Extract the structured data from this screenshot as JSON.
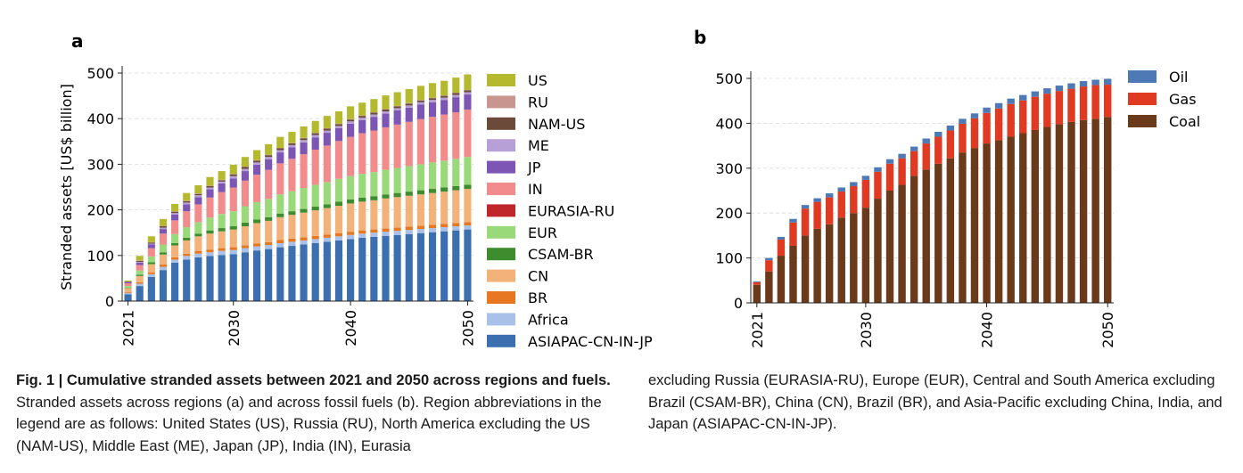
{
  "panels": [
    {
      "label": "a",
      "chart_data": {
        "type": "stacked_bar",
        "ylabel": "Stranded assets [US$ billion]",
        "xlabel": "",
        "ylim": [
          0,
          500
        ],
        "yticks": [
          0,
          100,
          200,
          300,
          400,
          500
        ],
        "xticks": [
          2021,
          2030,
          2040,
          2050
        ],
        "x": [
          2021,
          2022,
          2023,
          2024,
          2025,
          2026,
          2027,
          2028,
          2029,
          2030,
          2031,
          2032,
          2033,
          2034,
          2035,
          2036,
          2037,
          2038,
          2039,
          2040,
          2041,
          2042,
          2043,
          2044,
          2045,
          2046,
          2047,
          2048,
          2049,
          2050
        ],
        "legend_position": "right",
        "grid": "horizontal dashed",
        "series": [
          {
            "name": "ASIAPAC-CN-IN-JP",
            "color": "#3b6fb0",
            "values": [
              15,
              33,
              53,
              68,
              84,
              91,
              96,
              99,
              101,
              103,
              107,
              111,
              114,
              118,
              121,
              124,
              127,
              130,
              133,
              136,
              139,
              141,
              143,
              145,
              147,
              149,
              151,
              153,
              155,
              157
            ]
          },
          {
            "name": "Africa",
            "color": "#a9c1e8",
            "values": [
              3,
              5,
              6,
              7,
              7,
              8,
              8,
              8,
              9,
              9,
              9,
              9,
              9,
              9,
              9,
              9,
              9,
              9,
              9,
              9,
              9,
              9,
              9,
              9,
              9,
              9,
              9,
              9,
              9,
              9
            ]
          },
          {
            "name": "BR",
            "color": "#e87722",
            "values": [
              2,
              3,
              4,
              5,
              5,
              5,
              6,
              6,
              6,
              6,
              6,
              6,
              6,
              7,
              7,
              7,
              7,
              7,
              7,
              7,
              7,
              7,
              7,
              7,
              7,
              7,
              7,
              7,
              7,
              7
            ]
          },
          {
            "name": "CN",
            "color": "#f3b27a",
            "values": [
              8,
              14,
              18,
              22,
              26,
              29,
              32,
              35,
              37,
              39,
              42,
              45,
              47,
              50,
              52,
              54,
              56,
              58,
              60,
              62,
              63,
              64,
              66,
              67,
              68,
              69,
              70,
              71,
              72,
              73
            ]
          },
          {
            "name": "CSAM-BR",
            "color": "#3d8c2e",
            "values": [
              1,
              3,
              4,
              5,
              5,
              6,
              6,
              7,
              7,
              7,
              8,
              8,
              8,
              8,
              8,
              8,
              8,
              8,
              9,
              9,
              9,
              9,
              9,
              9,
              9,
              9,
              9,
              9,
              9,
              9
            ]
          },
          {
            "name": "EUR",
            "color": "#9ad97a",
            "values": [
              4,
              9,
              13,
              17,
              20,
              23,
              25,
              28,
              31,
              33,
              36,
              38,
              40,
              42,
              44,
              46,
              48,
              49,
              50,
              51,
              52,
              53,
              54,
              55,
              56,
              57,
              58,
              59,
              60,
              61
            ]
          },
          {
            "name": "EURASIA-RU",
            "color": "#c0272d",
            "values": [
              0,
              0,
              0,
              0,
              0,
              0,
              0,
              0,
              0,
              0,
              0,
              0,
              0,
              0,
              0,
              0,
              0,
              0,
              0,
              0,
              0,
              0,
              0,
              0,
              0,
              0,
              0,
              0,
              0,
              0
            ]
          },
          {
            "name": "IN",
            "color": "#f28c8c",
            "values": [
              6,
              12,
              18,
              24,
              30,
              35,
              39,
              44,
              48,
              52,
              56,
              60,
              64,
              68,
              71,
              74,
              77,
              80,
              83,
              86,
              89,
              91,
              93,
              95,
              97,
              99,
              100,
              101,
              102,
              104
            ]
          },
          {
            "name": "JP",
            "color": "#7d56b5",
            "values": [
              2,
              5,
              8,
              10,
              13,
              15,
              16,
              18,
              19,
              20,
              21,
              22,
              23,
              24,
              25,
              26,
              27,
              28,
              28,
              29,
              29,
              30,
              30,
              31,
              31,
              32,
              32,
              32,
              33,
              33
            ]
          },
          {
            "name": "ME",
            "color": "#b7a0d6",
            "values": [
              1,
              2,
              2,
              3,
              3,
              4,
              4,
              4,
              4,
              5,
              5,
              5,
              5,
              5,
              5,
              5,
              5,
              5,
              5,
              5,
              5,
              5,
              5,
              5,
              5,
              5,
              5,
              5,
              5,
              5
            ]
          },
          {
            "name": "NAM-US",
            "color": "#6b4a3a",
            "values": [
              1,
              2,
              2,
              3,
              3,
              3,
              3,
              3,
              3,
              4,
              4,
              4,
              4,
              4,
              4,
              4,
              4,
              4,
              4,
              4,
              4,
              4,
              4,
              4,
              4,
              4,
              4,
              4,
              4,
              4
            ]
          },
          {
            "name": "RU",
            "color": "#c9968f",
            "values": [
              0,
              1,
              1,
              1,
              1,
              1,
              1,
              1,
              1,
              1,
              1,
              1,
              1,
              1,
              1,
              1,
              1,
              1,
              1,
              1,
              1,
              1,
              1,
              1,
              1,
              1,
              1,
              1,
              1,
              1
            ]
          },
          {
            "name": "US",
            "color": "#b5b92e",
            "values": [
              2,
              10,
              13,
              15,
              16,
              17,
              18,
              19,
              19,
              20,
              21,
              22,
              23,
              24,
              24,
              25,
              26,
              27,
              27,
              28,
              28,
              29,
              30,
              30,
              31,
              31,
              32,
              32,
              33,
              34
            ]
          }
        ]
      }
    },
    {
      "label": "b",
      "chart_data": {
        "type": "stacked_bar",
        "ylabel": "",
        "xlabel": "",
        "ylim": [
          0,
          500
        ],
        "yticks": [
          0,
          100,
          200,
          300,
          400,
          500
        ],
        "xticks": [
          2021,
          2030,
          2040,
          2050
        ],
        "x": [
          2021,
          2022,
          2023,
          2024,
          2025,
          2026,
          2027,
          2028,
          2029,
          2030,
          2031,
          2032,
          2033,
          2034,
          2035,
          2036,
          2037,
          2038,
          2039,
          2040,
          2041,
          2042,
          2043,
          2044,
          2045,
          2046,
          2047,
          2048,
          2049,
          2050
        ],
        "legend_position": "top-right",
        "grid": "horizontal dashed",
        "series": [
          {
            "name": "Coal",
            "color": "#6b3a1b",
            "values": [
              40,
              70,
              105,
              127,
              150,
              165,
              175,
              190,
              200,
              212,
              232,
              250,
              263,
              283,
              297,
              310,
              322,
              335,
              345,
              355,
              362,
              370,
              378,
              385,
              392,
              398,
              403,
              407,
              410,
              414
            ]
          },
          {
            "name": "Gas",
            "color": "#e03a23",
            "values": [
              6,
              25,
              36,
              52,
              60,
              60,
              60,
              58,
              60,
              62,
              60,
              60,
              59,
              55,
              58,
              60,
              62,
              64,
              66,
              68,
              71,
              73,
              73,
              74,
              74,
              74,
              74,
              75,
              75,
              72
            ]
          },
          {
            "name": "Oil",
            "color": "#4f79b4",
            "values": [
              2,
              5,
              6,
              8,
              8,
              8,
              9,
              9,
              9,
              9,
              10,
              10,
              10,
              10,
              11,
              11,
              11,
              11,
              11,
              12,
              12,
              12,
              12,
              12,
              12,
              12,
              12,
              12,
              12,
              13
            ]
          }
        ]
      }
    }
  ],
  "caption": {
    "fig_label": "Fig. 1 | Cumulative stranded assets between 2021 and 2050 across regions and fuels.",
    "body_left": "Stranded assets across regions (a) and across fossil fuels (b). Region abbreviations in the legend are as follows: United States (US), Russia (RU), North America excluding the US (NAM-US), Middle East (ME), Japan (JP), India (IN), Eurasia",
    "body_right": "excluding Russia (EURASIA-RU), Europe (EUR), Central and South America excluding Brazil (CSAM-BR), China (CN), Brazil (BR), and Asia-Pacific excluding China, India, and Japan (ASIAPAC-CN-IN-JP)."
  }
}
